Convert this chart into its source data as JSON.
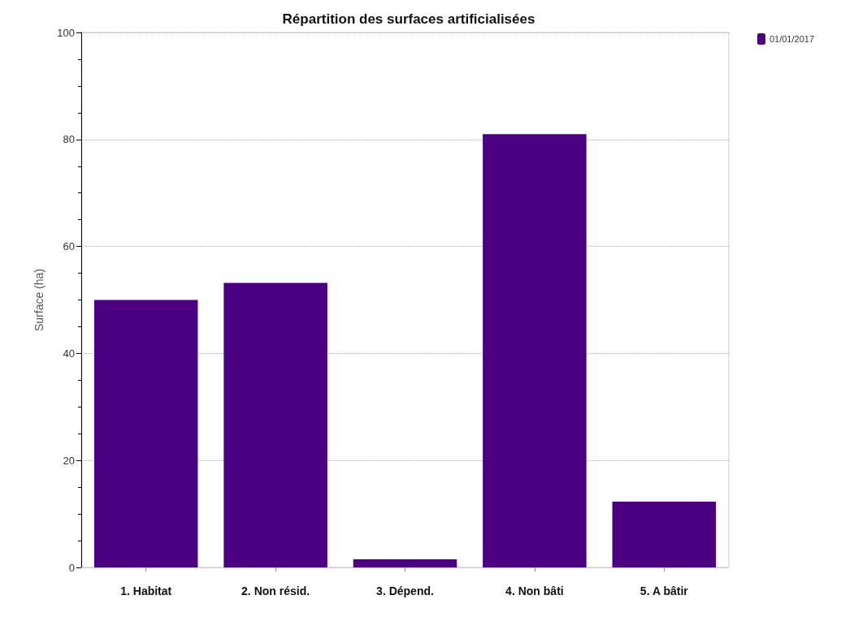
{
  "chart_data": {
    "type": "bar",
    "title": "Répartition des surfaces artificialisées",
    "ylabel": "Surface (ha)",
    "categories": [
      "1. Habitat",
      "2. Non résid.",
      "3. Dépend.",
      "4. Non bâti",
      "5. A bâtir"
    ],
    "series": [
      {
        "name": "01/01/2017",
        "color": "#4b0082",
        "values": [
          50,
          53.2,
          1.5,
          81,
          12.3
        ]
      }
    ],
    "ylim": [
      0,
      100
    ],
    "yticks": [
      0,
      20,
      40,
      60,
      80,
      100
    ],
    "grid": "y",
    "legend": "top right"
  }
}
